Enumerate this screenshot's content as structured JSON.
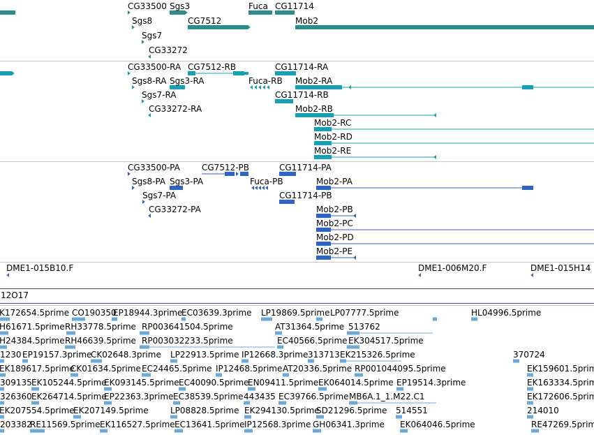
{
  "colors": {
    "gene": "#2b8c8c",
    "transcript": "#13a0b8",
    "protein": "#2e63c8",
    "clone": "#7a5bb0",
    "est": "#6aaad8",
    "separator": "#c8c8c8"
  },
  "genes": {
    "labels": [
      "CG33500",
      "Sgs3",
      "Fuca",
      "CG11714",
      "Sgs8",
      "CG7512",
      "Mob2",
      "Sgs7",
      "CG33272"
    ]
  },
  "transcripts": {
    "labels": [
      "CG33500-RA",
      "CG7512-RB",
      "CG11714-RA",
      "Sgs8-RA",
      "Sgs3-RA",
      "Fuca-RB",
      "Mob2-RA",
      "Sgs7-RA",
      "CG11714-RB",
      "CG33272-RA",
      "Mob2-RB",
      "Mob2-RC",
      "Mob2-RD",
      "Mob2-RE"
    ]
  },
  "proteins": {
    "labels": [
      "CG33500-PA",
      "CG7512-PB",
      "CG11714-PA",
      "Sgs8-PA",
      "Sgs3-PA",
      "Fuca-PB",
      "Mob2-PA",
      "Sgs7-PA",
      "CG11714-PB",
      "CG33272-PA",
      "Mob2-PB",
      "Mob2-PC",
      "Mob2-PD",
      "Mob2-PE"
    ]
  },
  "clones": {
    "labels": [
      "DME1-015B10.F",
      "DME1-006M20.F",
      "DME1-015H14"
    ]
  },
  "scaffold": {
    "label": "12O17"
  },
  "ests": {
    "rows": [
      [
        "K172654.5prime",
        "CO190350",
        "EP18944.3prime",
        "EC03639.3prime",
        "LP19869.5prime",
        "LP07777.5prime",
        "HL04996.5prime"
      ],
      [
        "H61671.5prime",
        "RH33778.5prime",
        "RP003641504.5prime",
        "AT31364.5prime",
        "513762"
      ],
      [
        "H24384.5prime",
        "RH46639.5prime",
        "RP003032233.5prime",
        "EC40566.5prime",
        "EK304517.5prime"
      ],
      [
        "1230",
        "EP19157.3prime",
        "CK02648.3prime",
        "LP22913.5prime",
        "IP12668.3prime",
        "313713",
        "EK215326.5prime",
        "370724"
      ],
      [
        "EK189617.5prime",
        "CK01634.5prime",
        "EC24465.5prime",
        "IP12468.5prime",
        "AT20336.5prime",
        "RP001044095.5prime",
        "EK159601.5prime"
      ],
      [
        "309135",
        "EK105244.5prime",
        "EK093145.5prime",
        "EC40090.5prime",
        "EN09411.5prime",
        "EK064014.5prime",
        "EP19514.3prime",
        "EK163334.5prime"
      ],
      [
        "326360",
        "EK264714.5prime",
        "EP22363.3prime",
        "EC38539.5prime",
        "443435",
        "EC39766.5prime",
        "MB6A.1_1.M22.C1",
        "EK172606.5prime"
      ],
      [
        "EK207554.5prime",
        "EK207149.5prime",
        "LP08828.5prime",
        "EK294130.5prime",
        "SD21296.5prime",
        "514551",
        "214010"
      ],
      [
        "203382",
        "RE11569.5prime",
        "EK116527.5prime",
        "EC13641.5prime",
        "IP12568.3prime",
        "GH06341.3prime",
        "EK064046.5prime",
        "RE47269.5prime"
      ]
    ]
  }
}
